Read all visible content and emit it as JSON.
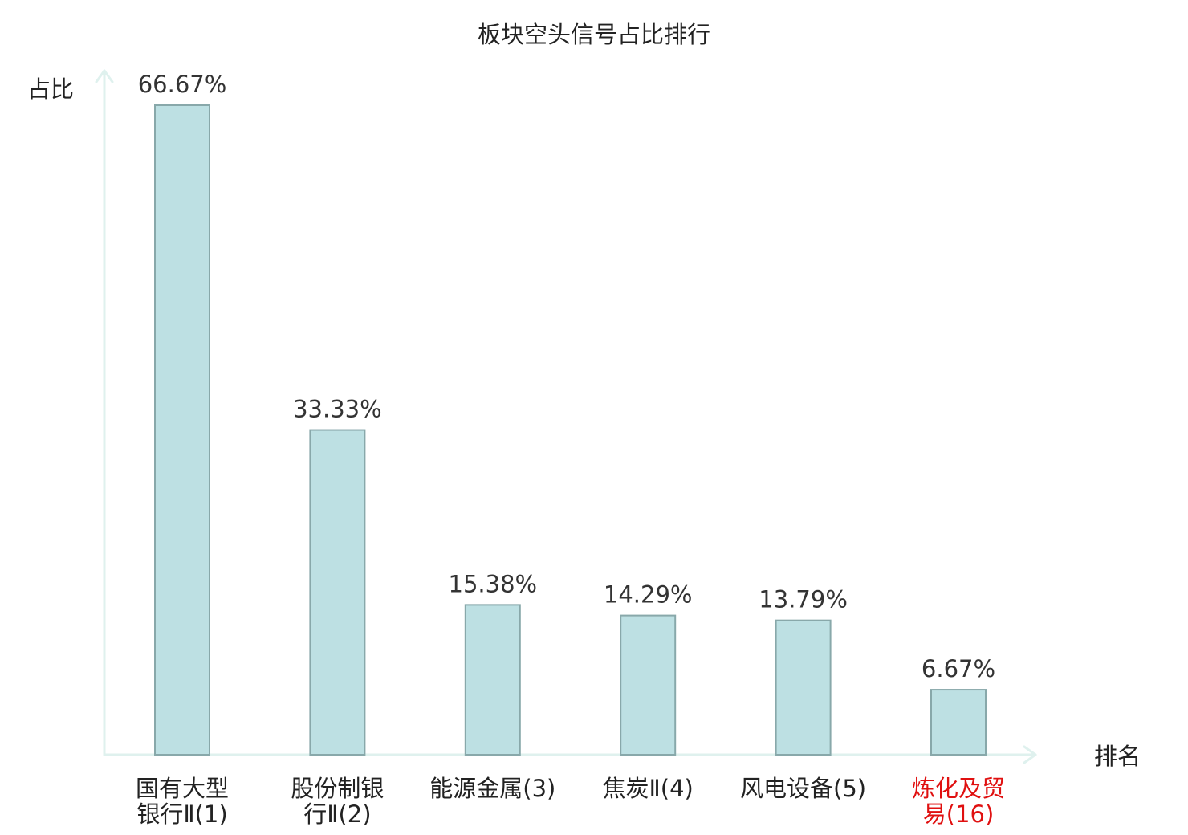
{
  "chart_data": {
    "type": "bar",
    "title": "板块空头信号占比排行",
    "ylabel": "占比",
    "xlabel": "排名",
    "ylim": [
      0,
      70
    ],
    "categories": [
      {
        "name": "国有大型银行Ⅱ",
        "lines": [
          "国有大型",
          "银行Ⅱ"
        ],
        "rank": "(1)",
        "highlight": false
      },
      {
        "name": "股份制银行Ⅱ",
        "lines": [
          "股份制银",
          "行Ⅱ"
        ],
        "rank": "(2)",
        "highlight": false
      },
      {
        "name": "能源金属",
        "lines": [
          "能源金属"
        ],
        "rank": "(3)",
        "highlight": false
      },
      {
        "name": "焦炭Ⅱ",
        "lines": [
          "焦炭Ⅱ"
        ],
        "rank": "(4)",
        "highlight": false
      },
      {
        "name": "风电设备",
        "lines": [
          "风电设备"
        ],
        "rank": "(5)",
        "highlight": false
      },
      {
        "name": "炼化及贸易",
        "lines": [
          "炼化及贸",
          "易"
        ],
        "rank": "(16)",
        "highlight": true
      }
    ],
    "values": [
      66.67,
      33.33,
      15.38,
      14.29,
      13.79,
      6.67
    ],
    "value_labels": [
      "66.67%",
      "33.33%",
      "15.38%",
      "14.29%",
      "13.79%",
      "6.67%"
    ],
    "colors": {
      "bar_fill": "#bde0e3",
      "bar_stroke": "#88a8aa",
      "axis": "#dff1ee",
      "text": "#222222",
      "value_text": "#333333",
      "highlight": "#e01010"
    },
    "grid": false,
    "legend": "none"
  }
}
